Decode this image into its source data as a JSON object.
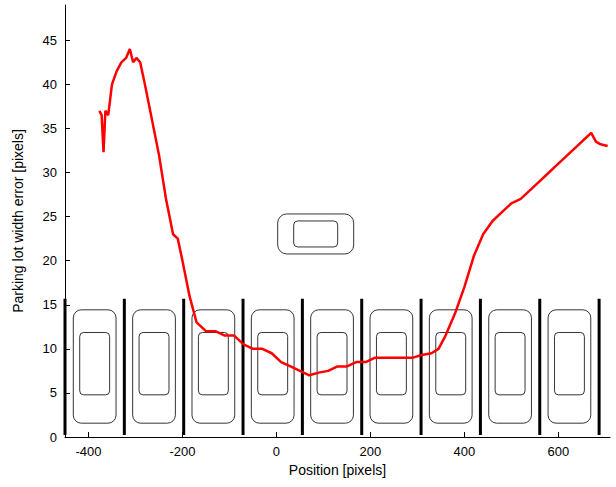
{
  "chart_data": {
    "type": "line",
    "xlabel": "Position [pixels]",
    "ylabel": "Parking lot width error [pixels]",
    "x": [
      -377,
      -372,
      -368,
      -364,
      -358,
      -350,
      -340,
      -330,
      -320,
      -312,
      -305,
      -298,
      -290,
      -280,
      -265,
      -250,
      -235,
      -220,
      -210,
      -200,
      -185,
      -170,
      -150,
      -130,
      -110,
      -90,
      -70,
      -50,
      -30,
      -10,
      10,
      30,
      50,
      70,
      90,
      110,
      130,
      150,
      170,
      190,
      210,
      230,
      250,
      270,
      290,
      310,
      330,
      345,
      360,
      380,
      400,
      420,
      440,
      460,
      480,
      500,
      520,
      540,
      560,
      580,
      600,
      620,
      640,
      660,
      670,
      680,
      690,
      705
    ],
    "series": [
      {
        "name": "Parking lot width error",
        "color": "#ff0000",
        "values": [
          37,
          36.5,
          32.3,
          37,
          36.5,
          40,
          41.5,
          42.5,
          43,
          44,
          42.5,
          43,
          42.5,
          40,
          36,
          32,
          27,
          23,
          22.5,
          20,
          16,
          13,
          12,
          12,
          11.5,
          11.5,
          10.5,
          10,
          10,
          9.5,
          8.5,
          8,
          7.5,
          7,
          7.3,
          7.5,
          8,
          8,
          8.5,
          8.5,
          9,
          9,
          9,
          9,
          9,
          9.3,
          9.5,
          10,
          11.5,
          14,
          17,
          20.5,
          23,
          24.5,
          25.5,
          26.5,
          27,
          28,
          29,
          30,
          31,
          32,
          33,
          34,
          34.5,
          33.5,
          33.2,
          33
        ]
      }
    ],
    "xlim": [
      -450,
      710
    ],
    "ylim": [
      0,
      49
    ],
    "xticks": [
      -400,
      -200,
      0,
      200,
      400,
      600
    ],
    "yticks": [
      0,
      5,
      10,
      15,
      20,
      25,
      30,
      35,
      40,
      45
    ],
    "grid": false
  }
}
